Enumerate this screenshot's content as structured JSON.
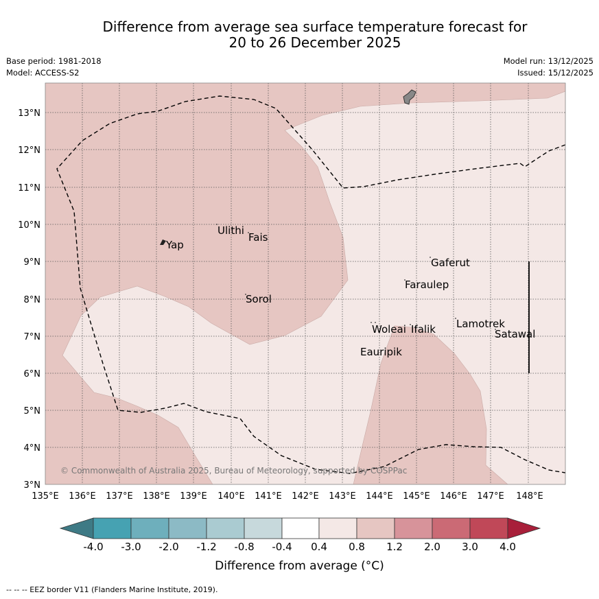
{
  "title": {
    "line1": "Difference from average sea surface temperature forecast for",
    "line2": "20 to 26 December 2025"
  },
  "meta": {
    "base_period": "Base period: 1981-2018",
    "model": "Model: ACCESS-S2",
    "model_run": "Model run: 13/12/2025",
    "issued": "Issued: 15/12/2025"
  },
  "axes": {
    "lat_labels": [
      "13°N",
      "12°N",
      "11°N",
      "10°N",
      "9°N",
      "8°N",
      "7°N",
      "6°N",
      "5°N",
      "4°N",
      "3°N"
    ],
    "lon_labels": [
      "135°E",
      "136°E",
      "137°E",
      "138°E",
      "139°E",
      "140°E",
      "141°E",
      "142°E",
      "143°E",
      "144°E",
      "145°E",
      "146°E",
      "147°E",
      "148°E"
    ]
  },
  "places": {
    "yap": "Yap",
    "ulithi": "Ulithi",
    "fais": "Fais",
    "sorol": "Sorol",
    "gaferut": "Gaferut",
    "faraulep": "Faraulep",
    "woleai": "Woleai",
    "ifalik": "Ifalik",
    "eauripik": "Eauripik",
    "lamotrek": "Lamotrek",
    "satawal": "Satawal"
  },
  "credit": "© Commonwealth of Australia 2025, Bureau of Meteorology, supported by COSPPac",
  "colorbar": {
    "title": "Difference from average (°C)",
    "tick_labels": [
      "-4.0",
      "-3.0",
      "-2.0",
      "-1.2",
      "-0.8",
      "-0.4",
      "0.4",
      "0.8",
      "1.2",
      "2.0",
      "3.0",
      "4.0"
    ],
    "colors": {
      "under": "#3e7a85",
      "c1": "#46a2b2",
      "c2": "#6eafbc",
      "c3": "#8cbac5",
      "c4": "#aacbd1",
      "c5": "#c7d9dc",
      "c6": "#ffffff",
      "c7": "#f4e8e6",
      "c8": "#e6c6c2",
      "c9": "#d7939a",
      "c10": "#cb6a75",
      "c11": "#c04858",
      "over": "#a81f3a"
    }
  },
  "anomaly_colors": {
    "band_0_4_to_0_8": "#f4e8e6",
    "band_0_8_to_1_2": "#e6c6c2"
  },
  "footer": "--  --  -- EEZ border V11 (Flanders Marine Institute, 2019)."
}
